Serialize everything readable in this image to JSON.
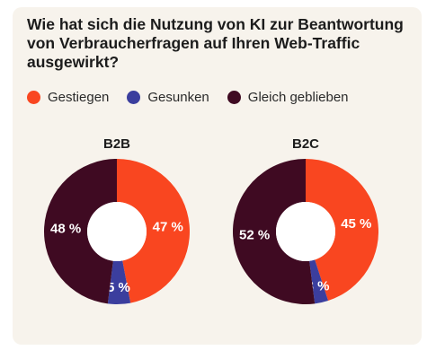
{
  "title": "Wie hat sich die Nutzung von KI zur Beantwortung von Verbraucherfragen auf Ihren Web-Traffic ausgewirkt?",
  "legend": [
    {
      "label": "Gestiegen",
      "color": "#f94620"
    },
    {
      "label": "Gesunken",
      "color": "#3b3e9e"
    },
    {
      "label": "Gleich geblieben",
      "color": "#3f0a22"
    }
  ],
  "chart_data": [
    {
      "type": "pie",
      "title": "B2B",
      "categories": [
        "Gestiegen",
        "Gesunken",
        "Gleich geblieben"
      ],
      "values": [
        47,
        5,
        48
      ],
      "labels": [
        "47 %",
        "5 %",
        "48 %"
      ]
    },
    {
      "type": "pie",
      "title": "B2C",
      "categories": [
        "Gestiegen",
        "Gesunken",
        "Gleich geblieben"
      ],
      "values": [
        45,
        3,
        52
      ],
      "labels": [
        "45 %",
        "3 %",
        "52 %"
      ]
    }
  ]
}
